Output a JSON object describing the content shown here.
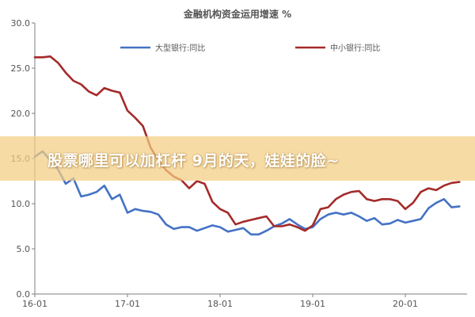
{
  "chart_data": {
    "type": "line",
    "title": "金融机构资金运用增速 %",
    "xlabel": "",
    "ylabel": "",
    "ylim": [
      0,
      30
    ],
    "yticks": [
      "0.0",
      "5.0",
      "10.0",
      "15.0",
      "20.0",
      "25.0",
      "30.0"
    ],
    "xticks": [
      {
        "label": "16-01",
        "x": 0
      },
      {
        "label": "17-01",
        "x": 12
      },
      {
        "label": "18-01",
        "x": 24
      },
      {
        "label": "19-01",
        "x": 36
      },
      {
        "label": "20-01",
        "x": 48
      }
    ],
    "grid": false,
    "legend_position": "top",
    "series": [
      {
        "name": "大型银行:同比",
        "color": "#4472C4",
        "x": [
          0,
          1,
          2,
          3,
          4,
          5,
          6,
          7,
          8,
          9,
          10,
          11,
          12,
          13,
          14,
          15,
          16,
          17,
          18,
          19,
          20,
          21,
          22,
          23,
          24,
          25,
          26,
          27,
          28,
          29,
          30,
          31,
          32,
          33,
          34,
          35,
          36,
          37,
          38,
          39,
          40,
          41,
          42,
          43,
          44,
          45,
          46,
          47,
          48,
          49,
          50,
          51,
          52,
          53,
          54,
          55
        ],
        "values": [
          15.2,
          15.8,
          14.8,
          13.8,
          12.2,
          12.8,
          10.8,
          11.0,
          11.3,
          12.0,
          10.5,
          11.0,
          9.0,
          9.4,
          9.2,
          9.1,
          8.8,
          7.7,
          7.2,
          7.4,
          7.4,
          7.0,
          7.3,
          7.6,
          7.4,
          6.9,
          7.1,
          7.3,
          6.6,
          6.6,
          7.0,
          7.5,
          7.8,
          8.3,
          7.7,
          7.2,
          7.4,
          8.3,
          8.8,
          9.0,
          8.8,
          9.0,
          8.6,
          8.1,
          8.4,
          7.7,
          7.8,
          8.2,
          7.9,
          8.1,
          8.3,
          9.5,
          10.1,
          10.5,
          9.6,
          9.7
        ]
      },
      {
        "name": "中小银行:同比",
        "color": "#A52A2A",
        "x": [
          0,
          1,
          2,
          3,
          4,
          5,
          6,
          7,
          8,
          9,
          10,
          11,
          12,
          13,
          14,
          15,
          16,
          17,
          18,
          19,
          20,
          21,
          22,
          23,
          24,
          25,
          26,
          27,
          28,
          29,
          30,
          31,
          32,
          33,
          34,
          35,
          36,
          37,
          38,
          39,
          40,
          41,
          42,
          43,
          44,
          45,
          46,
          47,
          48,
          49,
          50,
          51,
          52,
          53,
          54,
          55
        ],
        "values": [
          26.2,
          26.2,
          26.3,
          25.6,
          24.5,
          23.6,
          23.2,
          22.4,
          22.0,
          22.8,
          22.5,
          22.3,
          20.3,
          19.5,
          18.6,
          16.2,
          14.8,
          13.7,
          13.0,
          12.6,
          11.7,
          12.5,
          12.2,
          10.2,
          9.4,
          9.0,
          7.7,
          8.0,
          8.2,
          8.4,
          8.6,
          7.5,
          7.5,
          7.7,
          7.4,
          7.0,
          7.6,
          9.4,
          9.6,
          10.5,
          11.0,
          11.3,
          11.4,
          10.5,
          10.3,
          10.5,
          10.5,
          10.3,
          9.4,
          10.1,
          11.3,
          11.7,
          11.5,
          12.0,
          12.3,
          12.4
        ]
      }
    ]
  },
  "overlay": {
    "text": "股票哪里可以加杠杆 9月的天，娃娃的脸~"
  }
}
